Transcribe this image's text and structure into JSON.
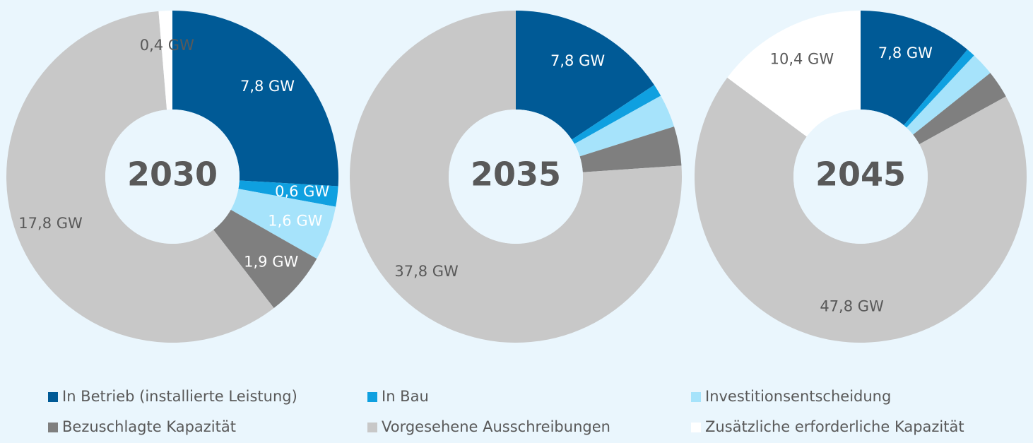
{
  "legend": {
    "labels": [
      "In Betrieb (installierte Leistung)",
      "In Bau",
      "Investitionsentscheidung",
      "Bezuschlagte Kapazität",
      "Vorgesehene Ausschreibungen",
      "Zusätzliche erforderliche Kapazität"
    ],
    "colors": [
      "#005a96",
      "#0fa0e0",
      "#a6e3fb",
      "#7f7f7f",
      "#c8c8c8",
      "#ffffff"
    ]
  },
  "chart_data": [
    {
      "type": "pie",
      "title": "2030",
      "values": [
        7.8,
        0.6,
        1.6,
        1.9,
        17.8,
        0.4
      ],
      "value_labels": [
        "7,8 GW",
        "0,6 GW",
        "1,6 GW",
        "1,9 GW",
        "17,8 GW",
        "0,4 GW"
      ]
    },
    {
      "type": "pie",
      "title": "2035",
      "values": [
        7.8,
        0.6,
        1.6,
        1.9,
        37.8,
        0
      ],
      "value_labels": [
        "7,8 GW",
        null,
        null,
        null,
        "37,8 GW",
        null
      ]
    },
    {
      "type": "pie",
      "title": "2045",
      "values": [
        7.8,
        0.6,
        1.6,
        1.9,
        47.8,
        10.4
      ],
      "value_labels": [
        "7,8 GW",
        null,
        null,
        null,
        "47,8 GW",
        "10,4 GW"
      ]
    }
  ]
}
